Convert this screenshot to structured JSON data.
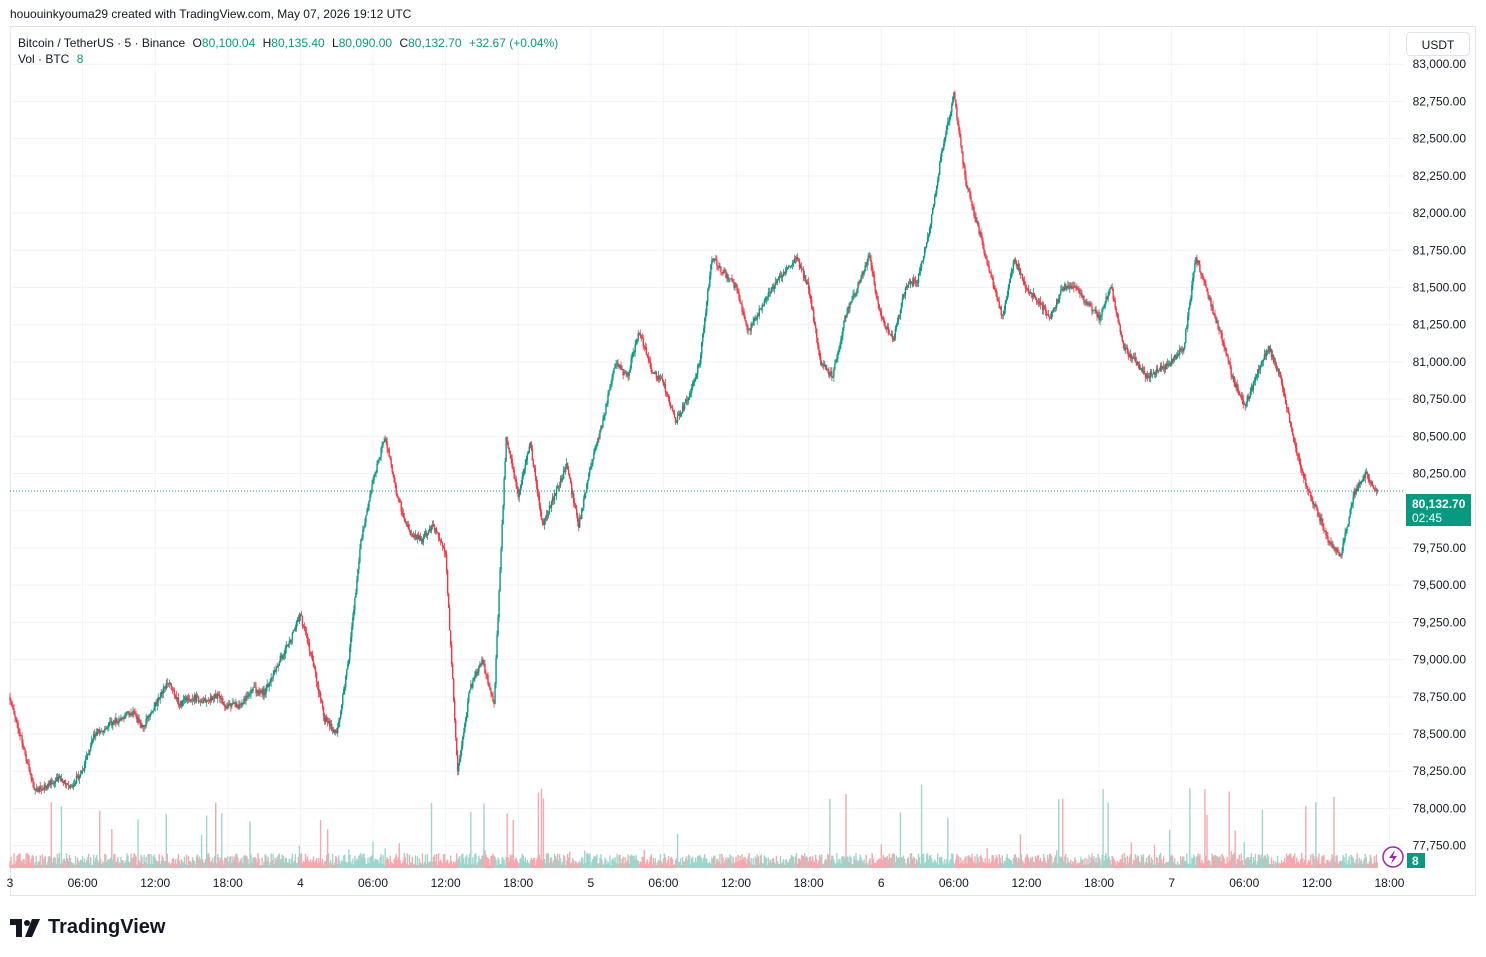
{
  "header": {
    "attribution": "hououinkyouma29 created with TradingView.com, May 07, 2026 19:12 UTC"
  },
  "legend": {
    "symbol": "Bitcoin / TetherUS · 5 · Binance",
    "o_label": "O",
    "o_value": "80,100.04",
    "h_label": "H",
    "h_value": "80,135.40",
    "l_label": "L",
    "l_value": "80,090.00",
    "c_label": "C",
    "c_value": "80,132.70",
    "change": "+32.67 (+0.04%)",
    "vol_label": "Vol · BTC",
    "vol_value": "8"
  },
  "currency_button": "USDT",
  "price_label": {
    "price": "80,132.70",
    "countdown": "02:45"
  },
  "volume_badge": "8",
  "brand": "TradingView",
  "colors": {
    "up": "#089981",
    "down": "#f23645",
    "up_vol": "#9ed5cb",
    "down_vol": "#f5a8ae",
    "grid": "#f0f3fa"
  },
  "chart_data": {
    "type": "candlestick",
    "interval": "5 minutes",
    "ylim": [
      77600,
      83250
    ],
    "y_ticks": [
      "83,000.00",
      "82,750.00",
      "82,500.00",
      "82,250.00",
      "82,000.00",
      "81,750.00",
      "81,500.00",
      "81,250.00",
      "81,000.00",
      "80,750.00",
      "80,500.00",
      "80,250.00",
      "80,000.00",
      "79,750.00",
      "79,500.00",
      "79,250.00",
      "79,000.00",
      "78,750.00",
      "78,500.00",
      "78,250.00",
      "78,000.00",
      "77,750.00"
    ],
    "y_tick_values": [
      83000,
      82750,
      82500,
      82250,
      82000,
      81750,
      81500,
      81250,
      81000,
      80750,
      80500,
      80250,
      80000,
      79750,
      79500,
      79250,
      79000,
      78750,
      78500,
      78250,
      78000,
      77750
    ],
    "x_ticks": [
      "3",
      "06:00",
      "12:00",
      "18:00",
      "4",
      "06:00",
      "12:00",
      "18:00",
      "5",
      "06:00",
      "12:00",
      "18:00",
      "6",
      "06:00",
      "12:00",
      "18:00",
      "7",
      "06:00",
      "12:00",
      "18:00"
    ],
    "x_tick_hours": [
      0,
      6,
      12,
      18,
      24,
      30,
      36,
      42,
      48,
      54,
      60,
      66,
      72,
      78,
      84,
      90,
      96,
      102,
      108,
      114
    ],
    "x_range_hours": [
      0,
      115.2
    ],
    "last_price": 80132.7,
    "price_path": [
      [
        0,
        78750
      ],
      [
        1,
        78450
      ],
      [
        2,
        78120
      ],
      [
        3,
        78150
      ],
      [
        4,
        78200
      ],
      [
        5,
        78150
      ],
      [
        6,
        78250
      ],
      [
        7,
        78500
      ],
      [
        8,
        78550
      ],
      [
        9,
        78600
      ],
      [
        10,
        78650
      ],
      [
        11,
        78550
      ],
      [
        12,
        78700
      ],
      [
        13,
        78850
      ],
      [
        14,
        78700
      ],
      [
        15,
        78750
      ],
      [
        16,
        78720
      ],
      [
        17,
        78760
      ],
      [
        18,
        78680
      ],
      [
        19,
        78700
      ],
      [
        20,
        78800
      ],
      [
        21,
        78780
      ],
      [
        22,
        78950
      ],
      [
        23,
        79100
      ],
      [
        24,
        79300
      ],
      [
        25,
        79000
      ],
      [
        26,
        78600
      ],
      [
        27,
        78500
      ],
      [
        28,
        79000
      ],
      [
        29,
        79800
      ],
      [
        30,
        80200
      ],
      [
        31,
        80500
      ],
      [
        32,
        80100
      ],
      [
        33,
        79850
      ],
      [
        34,
        79800
      ],
      [
        35,
        79900
      ],
      [
        36,
        79700
      ],
      [
        37,
        78250
      ],
      [
        38,
        78800
      ],
      [
        39,
        79000
      ],
      [
        40,
        78700
      ],
      [
        41,
        80500
      ],
      [
        42,
        80100
      ],
      [
        43,
        80450
      ],
      [
        44,
        79900
      ],
      [
        45,
        80100
      ],
      [
        46,
        80300
      ],
      [
        47,
        79900
      ],
      [
        48,
        80300
      ],
      [
        49,
        80600
      ],
      [
        50,
        81000
      ],
      [
        51,
        80900
      ],
      [
        52,
        81200
      ],
      [
        53,
        80950
      ],
      [
        54,
        80850
      ],
      [
        55,
        80600
      ],
      [
        56,
        80750
      ],
      [
        57,
        81000
      ],
      [
        58,
        81700
      ],
      [
        59,
        81600
      ],
      [
        60,
        81500
      ],
      [
        61,
        81200
      ],
      [
        62,
        81350
      ],
      [
        63,
        81500
      ],
      [
        64,
        81600
      ],
      [
        65,
        81700
      ],
      [
        66,
        81500
      ],
      [
        67,
        81000
      ],
      [
        68,
        80900
      ],
      [
        69,
        81300
      ],
      [
        70,
        81500
      ],
      [
        71,
        81700
      ],
      [
        72,
        81300
      ],
      [
        73,
        81150
      ],
      [
        74,
        81500
      ],
      [
        75,
        81550
      ],
      [
        76,
        81900
      ],
      [
        77,
        82400
      ],
      [
        78,
        82800
      ],
      [
        79,
        82200
      ],
      [
        80,
        81900
      ],
      [
        81,
        81600
      ],
      [
        82,
        81300
      ],
      [
        83,
        81700
      ],
      [
        84,
        81500
      ],
      [
        85,
        81400
      ],
      [
        86,
        81300
      ],
      [
        87,
        81500
      ],
      [
        88,
        81500
      ],
      [
        89,
        81400
      ],
      [
        90,
        81300
      ],
      [
        91,
        81500
      ],
      [
        92,
        81100
      ],
      [
        93,
        81000
      ],
      [
        94,
        80900
      ],
      [
        95,
        80950
      ],
      [
        96,
        81000
      ],
      [
        97,
        81100
      ],
      [
        98,
        81700
      ],
      [
        99,
        81450
      ],
      [
        100,
        81200
      ],
      [
        101,
        80900
      ],
      [
        102,
        80700
      ],
      [
        103,
        80900
      ],
      [
        104,
        81100
      ],
      [
        105,
        80900
      ],
      [
        106,
        80500
      ],
      [
        107,
        80200
      ],
      [
        108,
        80000
      ],
      [
        109,
        79800
      ],
      [
        110,
        79700
      ],
      [
        111,
        80100
      ],
      [
        112,
        80250
      ],
      [
        113,
        80132.7
      ]
    ]
  }
}
